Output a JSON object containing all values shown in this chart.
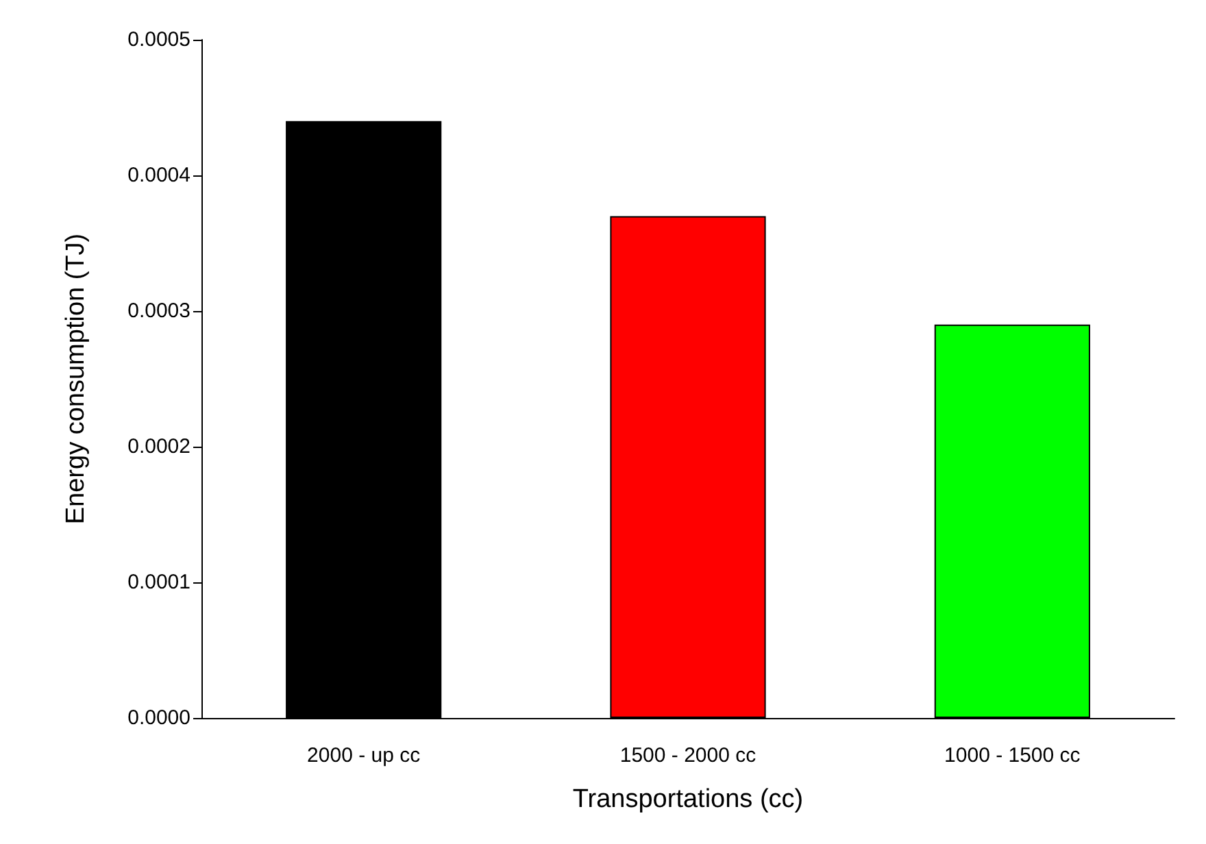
{
  "chart_data": {
    "type": "bar",
    "xlabel": "Transportations (cc)",
    "ylabel": "Energy consumption (TJ)",
    "categories": [
      "2000 - up cc",
      "1500 - 2000 cc",
      "1000 - 1500 cc"
    ],
    "values": [
      0.00044,
      0.00037,
      0.00029
    ],
    "colors": [
      "#000000",
      "#ff0000",
      "#00ff00"
    ],
    "ylim": [
      0,
      0.0005
    ],
    "yticks": [
      {
        "value": 0,
        "label": "0.0000"
      },
      {
        "value": 0.0001,
        "label": "0.0001"
      },
      {
        "value": 0.0002,
        "label": "0.0002"
      },
      {
        "value": 0.0003,
        "label": "0.0003"
      },
      {
        "value": 0.0004,
        "label": "0.0004"
      },
      {
        "value": 0.0005,
        "label": "0.0005"
      }
    ],
    "grid": false
  }
}
